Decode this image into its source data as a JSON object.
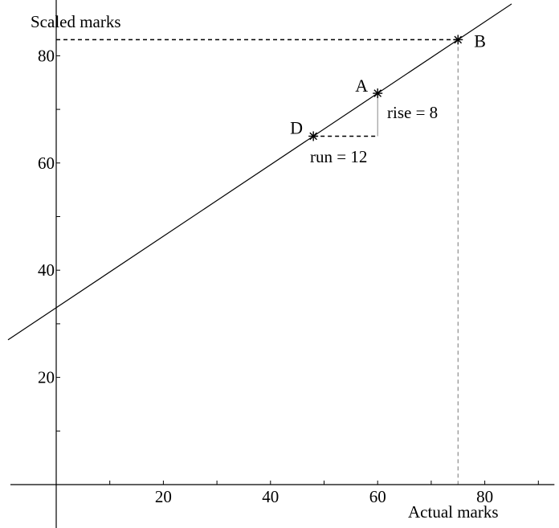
{
  "chart_data": {
    "type": "line",
    "title": "",
    "xlabel": "Actual marks",
    "ylabel": "Scaled marks",
    "xlim": [
      -9,
      93
    ],
    "ylim": [
      -10,
      90
    ],
    "x_ticks": [
      10,
      20,
      30,
      40,
      50,
      60,
      70,
      80,
      90
    ],
    "x_tick_labels": [
      {
        "value": 20,
        "label": "20"
      },
      {
        "value": 40,
        "label": "40"
      },
      {
        "value": 60,
        "label": "60"
      },
      {
        "value": 80,
        "label": "80"
      }
    ],
    "y_ticks": [
      10,
      20,
      30,
      40,
      50,
      60,
      70,
      80
    ],
    "y_tick_labels": [
      {
        "value": 20,
        "label": "20"
      },
      {
        "value": 40,
        "label": "40"
      },
      {
        "value": 60,
        "label": "60"
      },
      {
        "value": 80,
        "label": "80"
      }
    ],
    "line": {
      "slope": 0.6667,
      "intercept": 33
    },
    "points": [
      {
        "label": "A",
        "x": 60,
        "y": 73
      },
      {
        "label": "B",
        "x": 75,
        "y": 83
      },
      {
        "label": "D",
        "x": 48,
        "y": 65
      }
    ],
    "annotations": {
      "rise": "rise = 8",
      "run": "run = 12"
    },
    "grid": false
  }
}
